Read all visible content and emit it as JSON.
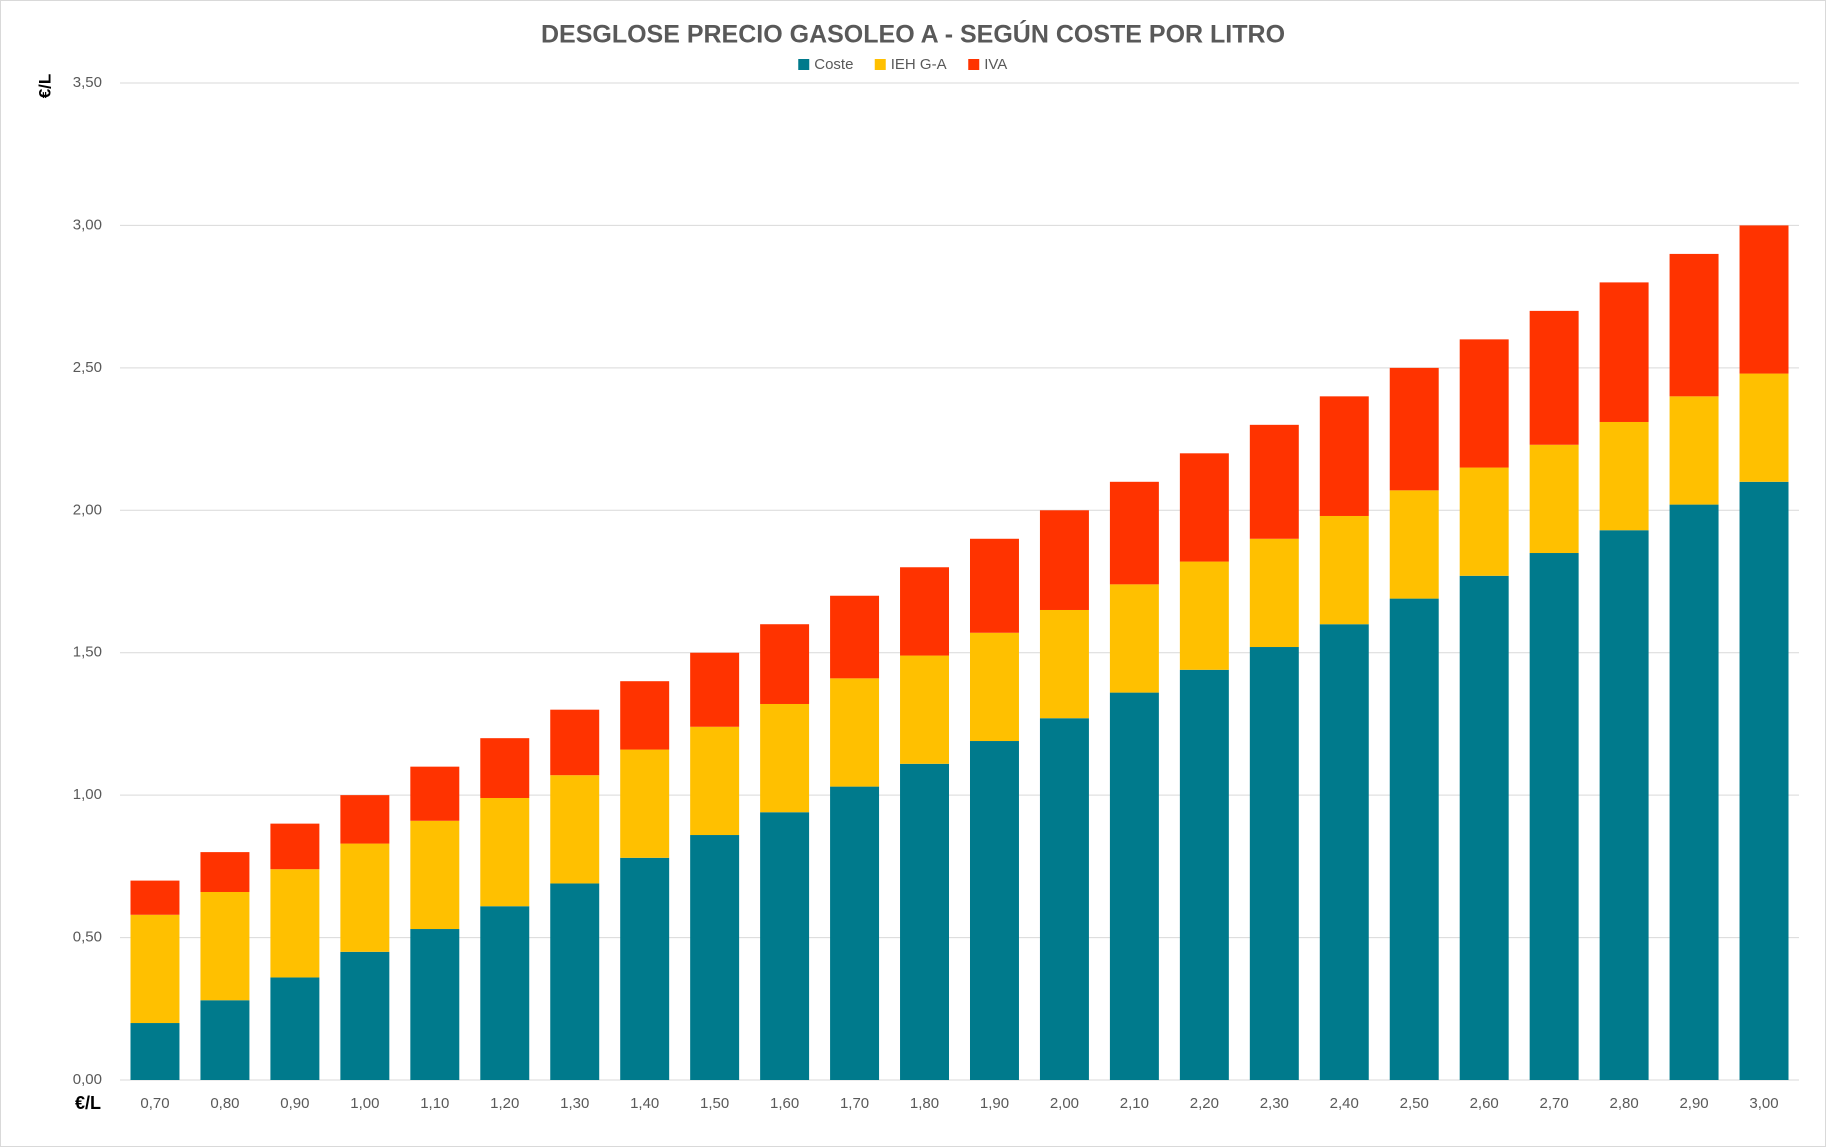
{
  "chart_data": {
    "type": "stacked_bar",
    "title": "DESGLOSE PRECIO GASOLEO A - SEGÚN COSTE POR LITRO",
    "y_label": "€/L",
    "x_label": "€/L",
    "categories": [
      "0,70",
      "0,80",
      "0,90",
      "1,00",
      "1,10",
      "1,20",
      "1,30",
      "1,40",
      "1,50",
      "1,60",
      "1,70",
      "1,80",
      "1,90",
      "2,00",
      "2,10",
      "2,20",
      "2,30",
      "2,40",
      "2,50",
      "2,60",
      "2,70",
      "2,80",
      "2,90",
      "3,00"
    ],
    "series": [
      {
        "name": "Coste",
        "color": "#007a8c",
        "values": [
          0.2,
          0.28,
          0.36,
          0.45,
          0.53,
          0.61,
          0.69,
          0.78,
          0.86,
          0.94,
          1.03,
          1.11,
          1.19,
          1.27,
          1.36,
          1.44,
          1.52,
          1.6,
          1.69,
          1.77,
          1.85,
          1.93,
          2.02,
          2.1
        ]
      },
      {
        "name": "IEH G-A",
        "color": "#ffc000",
        "values": [
          0.38,
          0.38,
          0.38,
          0.38,
          0.38,
          0.38,
          0.38,
          0.38,
          0.38,
          0.38,
          0.38,
          0.38,
          0.38,
          0.38,
          0.38,
          0.38,
          0.38,
          0.38,
          0.38,
          0.38,
          0.38,
          0.38,
          0.38,
          0.38
        ]
      },
      {
        "name": "IVA",
        "color": "#ff3300",
        "values": [
          0.12,
          0.14,
          0.16,
          0.17,
          0.19,
          0.21,
          0.23,
          0.24,
          0.26,
          0.28,
          0.29,
          0.31,
          0.33,
          0.35,
          0.36,
          0.38,
          0.4,
          0.42,
          0.43,
          0.45,
          0.47,
          0.49,
          0.5,
          0.52
        ]
      }
    ],
    "ylim": [
      0,
      3.5
    ],
    "yticks": [
      {
        "value": 0,
        "label": "0,00"
      },
      {
        "value": 0.5,
        "label": "0,50"
      },
      {
        "value": 1,
        "label": "1,00"
      },
      {
        "value": 1.5,
        "label": "1,50"
      },
      {
        "value": 2,
        "label": "2,00"
      },
      {
        "value": 2.5,
        "label": "2,50"
      },
      {
        "value": 3,
        "label": "3,00"
      },
      {
        "value": 3.5,
        "label": "3,50"
      }
    ],
    "grid": true,
    "legend": "top"
  }
}
